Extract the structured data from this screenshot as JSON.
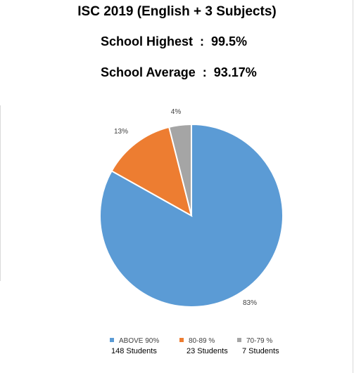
{
  "header": {
    "title": "ISC 2019 (English + 3 Subjects)",
    "school_highest": "School Highest  :  99.5%",
    "school_average": "School Average  :  93.17%"
  },
  "chart_data": {
    "type": "pie",
    "title": "ISC 2019 (English + 3 Subjects)",
    "categories": [
      "ABOVE 90%",
      "80-89 %",
      "70-79 %"
    ],
    "values": [
      148,
      23,
      7
    ],
    "data_labels": [
      "83%",
      "13%",
      "4%"
    ],
    "student_counts": [
      "148 Students",
      "23 Students",
      "7 Students"
    ],
    "colors": [
      "#5b9bd5",
      "#ed7d31",
      "#a5a5a5"
    ],
    "legend_position": "bottom"
  }
}
